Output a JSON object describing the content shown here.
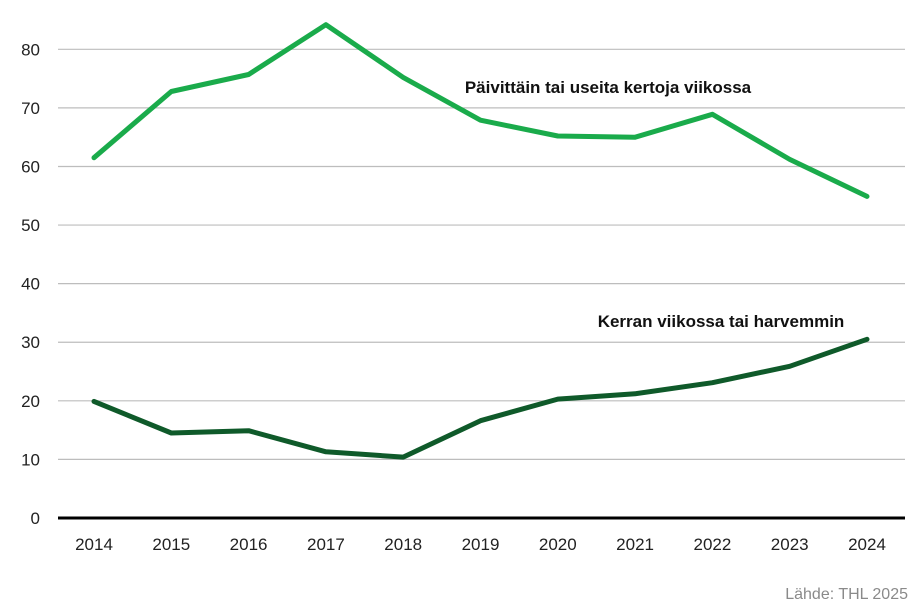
{
  "chart_data": {
    "type": "line",
    "x": [
      "2014",
      "2015",
      "2016",
      "2017",
      "2018",
      "2019",
      "2020",
      "2021",
      "2022",
      "2023",
      "2024"
    ],
    "ylim": [
      0,
      85
    ],
    "yticks": [
      0,
      10,
      20,
      30,
      40,
      50,
      60,
      70,
      80
    ],
    "grid": true,
    "series": [
      {
        "name": "Päivittäin tai useita kertoja viikossa",
        "color": "#1aab4b",
        "values": [
          61.5,
          72.8,
          75.7,
          84.2,
          75.2,
          67.9,
          65.2,
          65.0,
          68.9,
          61.2,
          54.9
        ]
      },
      {
        "name": "Kerran viikossa tai harvemmin",
        "color": "#0f5a2a",
        "values": [
          19.9,
          14.5,
          14.9,
          11.3,
          10.4,
          16.6,
          20.3,
          21.2,
          23.1,
          25.9,
          30.5
        ]
      }
    ]
  },
  "source": "Lähde: THL 2025"
}
